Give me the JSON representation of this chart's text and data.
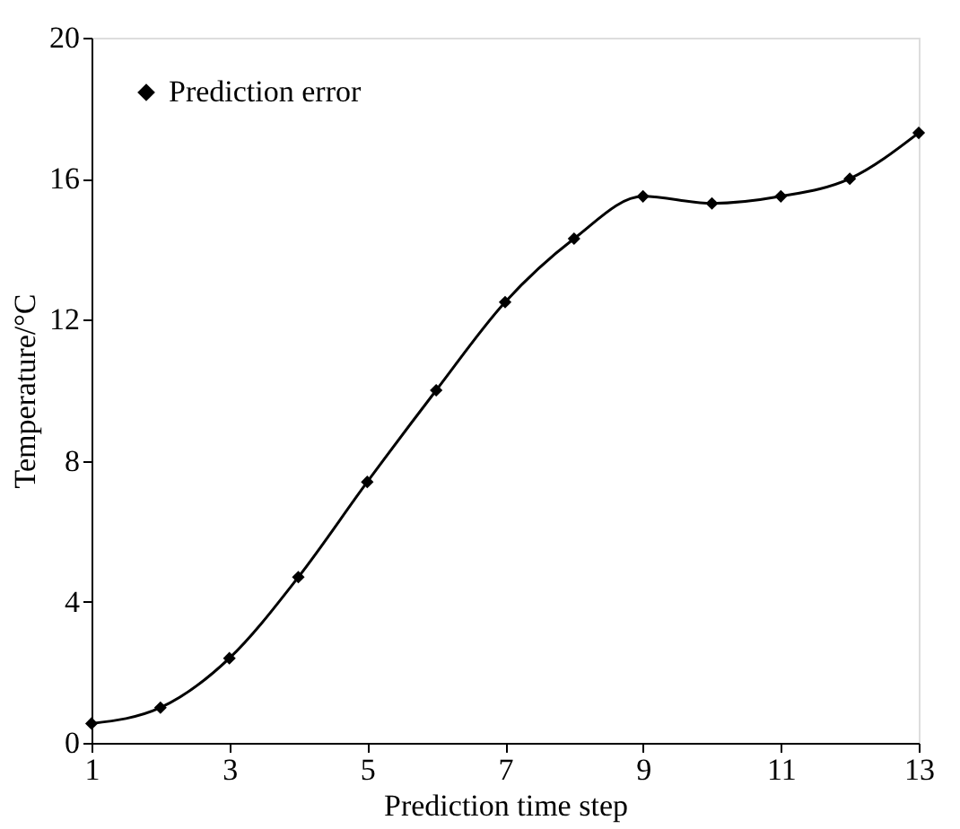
{
  "chart_data": {
    "type": "line",
    "xlabel": "Prediction time step",
    "ylabel": "Temperature/°C",
    "x": [
      1,
      2,
      3,
      4,
      5,
      6,
      7,
      8,
      9,
      10,
      11,
      12,
      13
    ],
    "series": [
      {
        "name": "Prediction error",
        "color": "#000000",
        "values": [
          0.55,
          1.0,
          2.4,
          4.7,
          7.4,
          10.0,
          12.5,
          14.3,
          15.5,
          15.3,
          15.5,
          16.0,
          17.3
        ]
      }
    ],
    "xlim": [
      1,
      13
    ],
    "xticks": [
      1,
      3,
      5,
      7,
      9,
      11,
      13
    ],
    "ylim": [
      0,
      20
    ],
    "yticks": [
      0,
      4,
      8,
      12,
      16,
      20
    ],
    "grid": false,
    "legend": "top left",
    "marker": "diamond",
    "line_style": "solid"
  }
}
